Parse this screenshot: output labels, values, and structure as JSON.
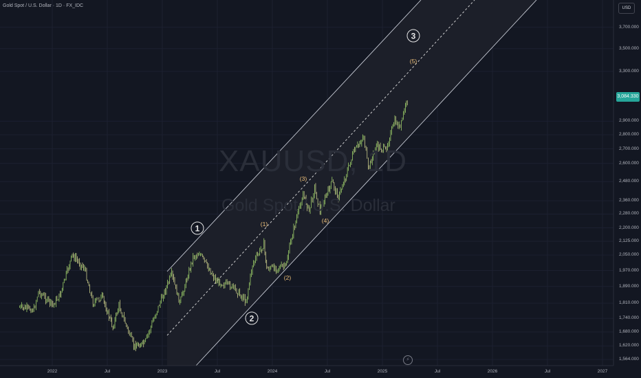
{
  "header": {
    "title": "Gold Spot / U.S. Dollar · 1D · FX_IDC"
  },
  "watermark": {
    "symbol": "XAUUSD, 1D",
    "description": "Gold Spot / U.S. Dollar"
  },
  "price_axis": {
    "currency": "USD",
    "last_price": "3,084.330",
    "ticks": [
      "3,700.000",
      "3,500.000",
      "3,300.000",
      "2,900.000",
      "2,800.000",
      "2,700.000",
      "2,600.000",
      "2,480.000",
      "2,360.000",
      "2,280.000",
      "2,200.000",
      "2,125.000",
      "2,050.000",
      "1,970.000",
      "1,890.000",
      "1,810.000",
      "1,740.000",
      "1,680.000",
      "1,620.000",
      "1,564.000"
    ]
  },
  "time_axis": {
    "ticks": [
      "2022",
      "Jul",
      "2023",
      "Jul",
      "2024",
      "Jul",
      "2025",
      "Jul",
      "2026",
      "Jul",
      "2027"
    ]
  },
  "colors": {
    "background": "#131722",
    "up": "#26a69a",
    "down": "#ef5350",
    "candle": "#9ed16a",
    "channel": "#c8ccd6",
    "minor_label": "#f0c27b"
  },
  "wave_labels": {
    "major": [
      "1",
      "2",
      "3"
    ],
    "minor": [
      "(1)",
      "(2)",
      "(3)",
      "(4)",
      "(5)"
    ]
  },
  "replay_icon": "lightning-icon",
  "chart_data": {
    "type": "candlestick",
    "symbol": "XAUUSD",
    "interval": "1D",
    "y_scale": "log",
    "ylim": [
      1545,
      3900
    ],
    "x": [
      "2021-09-15",
      "2021-11-01",
      "2021-11-16",
      "2022-01-03",
      "2022-01-27",
      "2022-03-08",
      "2022-04-18",
      "2022-05-16",
      "2022-06-15",
      "2022-07-21",
      "2022-08-10",
      "2022-09-28",
      "2022-11-03",
      "2022-12-15",
      "2023-02-01",
      "2023-02-28",
      "2023-04-13",
      "2023-05-04",
      "2023-06-30",
      "2023-08-21",
      "2023-10-06",
      "2023-10-27",
      "2023-12-04",
      "2023-12-13",
      "2024-02-14",
      "2024-03-08",
      "2024-04-12",
      "2024-05-02",
      "2024-05-20",
      "2024-06-07",
      "2024-07-17",
      "2024-08-07",
      "2024-09-26",
      "2024-10-30",
      "2024-11-14",
      "2024-12-11",
      "2025-01-10",
      "2025-02-10",
      "2025-02-28",
      "2025-03-14",
      "2025-03-27"
    ],
    "close": [
      1790,
      1780,
      1865,
      1800,
      1850,
      2050,
      1980,
      1810,
      1840,
      1700,
      1800,
      1620,
      1630,
      1780,
      1950,
      1810,
      2040,
      2060,
      1915,
      1890,
      1820,
      2000,
      2110,
      1980,
      1990,
      2170,
      2400,
      2300,
      2440,
      2300,
      2480,
      2380,
      2670,
      2790,
      2560,
      2720,
      2690,
      2900,
      2850,
      2990,
      3084.33
    ]
  }
}
